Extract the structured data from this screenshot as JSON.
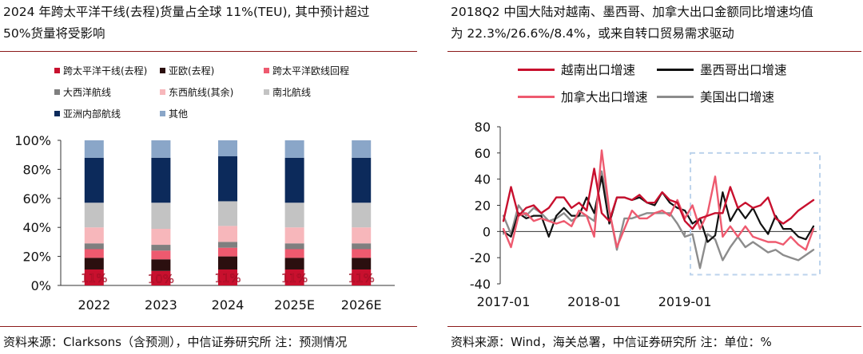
{
  "left": {
    "title_line1": "2024 年跨太平洋干线(去程)货量占全球 11%(TEU), 其中预计超过",
    "title_line2": "50%货量将受影响",
    "source": "资料来源：Clarksons（含预测），中信证券研究所   注：预测情况",
    "chart_data": {
      "type": "bar",
      "stacked": true,
      "categories": [
        "2022",
        "2023",
        "2024",
        "2025E",
        "2026E"
      ],
      "ylim": [
        0,
        100
      ],
      "yticks": [
        "0%",
        "20%",
        "40%",
        "60%",
        "80%",
        "100%"
      ],
      "grid": false,
      "legend_position": "top",
      "series": [
        {
          "name": "跨太平洋干线(去程)",
          "color": "#c8102e",
          "values": [
            11,
            10,
            11,
            11,
            11
          ],
          "labels": [
            "11%",
            "10%",
            "11%",
            "11%",
            "11%"
          ]
        },
        {
          "name": "亚欧(去程)",
          "color": "#2b0f0f",
          "values": [
            8,
            8,
            9,
            8,
            8
          ]
        },
        {
          "name": "跨太平洋欧线回程",
          "color": "#ee5a6f",
          "values": [
            6,
            6,
            6,
            6,
            6
          ]
        },
        {
          "name": "大西洋航线",
          "color": "#7f7f7f",
          "values": [
            4,
            4,
            4,
            4,
            4
          ]
        },
        {
          "name": "东西航线(其余)",
          "color": "#f7b7bb",
          "values": [
            11,
            11,
            11,
            11,
            11
          ]
        },
        {
          "name": "南北航线",
          "color": "#c3c3c3",
          "values": [
            17,
            18,
            17,
            17,
            17
          ]
        },
        {
          "name": "亚洲内部航线",
          "color": "#0c2a5b",
          "values": [
            31,
            31,
            31,
            31,
            31
          ]
        },
        {
          "name": "其他",
          "color": "#8aa6c8",
          "values": [
            12,
            12,
            11,
            12,
            12
          ]
        }
      ]
    }
  },
  "right": {
    "title_line1": "2018Q2 中国大陆对越南、墨西哥、加拿大出口金额同比增速均值",
    "title_line2": "为 22.3%/26.6%/8.4%，或来自转口贸易需求驱动",
    "source": "资料来源：Wind，海关总署，中信证券研究所   注：单位：%",
    "chart_data": {
      "type": "line",
      "x": [
        "2017-01",
        "2017-02",
        "2017-03",
        "2017-04",
        "2017-05",
        "2017-06",
        "2017-07",
        "2017-08",
        "2017-09",
        "2017-10",
        "2017-11",
        "2017-12",
        "2018-01",
        "2018-02",
        "2018-03",
        "2018-04",
        "2018-05",
        "2018-06",
        "2018-07",
        "2018-08",
        "2018-09",
        "2018-10",
        "2018-11",
        "2018-12",
        "2019-01",
        "2019-02",
        "2019-03",
        "2019-04",
        "2019-05",
        "2019-06",
        "2019-07",
        "2019-08",
        "2019-09",
        "2019-10",
        "2019-11",
        "2019-12",
        "2020-01",
        "2020-02",
        "2020-03",
        "2020-04",
        "2020-05",
        "2020-06"
      ],
      "xticks": [
        "2017-01",
        "2018-01",
        "2019-01"
      ],
      "ylim": [
        -40,
        80
      ],
      "yticks": [
        "-40",
        "-20",
        "0",
        "20",
        "40",
        "60",
        "80"
      ],
      "grid": false,
      "legend_position": "top",
      "highlight_box": {
        "x_from": "2019-03",
        "x_to": "2020-06",
        "y_from": -33,
        "y_to": 60
      },
      "series": [
        {
          "name": "越南出口增速",
          "color": "#c8102e",
          "width": 2.4,
          "values": [
            8,
            34,
            12,
            18,
            20,
            14,
            18,
            26,
            26,
            18,
            22,
            16,
            48,
            14,
            8,
            26,
            26,
            24,
            28,
            22,
            22,
            30,
            24,
            22,
            8,
            2,
            10,
            12,
            14,
            14,
            34,
            18,
            22,
            18,
            20,
            26,
            10,
            6,
            10,
            16,
            20,
            24
          ]
        },
        {
          "name": "墨西哥出口增速",
          "color": "#111111",
          "width": 2.2,
          "values": [
            0,
            -4,
            14,
            10,
            12,
            12,
            -4,
            12,
            18,
            12,
            12,
            26,
            14,
            42,
            6,
            26,
            26,
            24,
            26,
            22,
            20,
            30,
            22,
            18,
            16,
            6,
            10,
            -8,
            -3,
            30,
            8,
            18,
            10,
            18,
            6,
            -2,
            12,
            2,
            2,
            -4,
            -6,
            4
          ]
        },
        {
          "name": "加拿大出口增速",
          "color": "#ee5a6f",
          "width": 2.4,
          "values": [
            2,
            -12,
            12,
            14,
            8,
            10,
            8,
            6,
            8,
            4,
            16,
            12,
            -4,
            62,
            16,
            -12,
            2,
            16,
            10,
            10,
            14,
            16,
            12,
            24,
            10,
            20,
            2,
            14,
            42,
            -4,
            4,
            -4,
            4,
            -4,
            -6,
            -8,
            -8,
            -10,
            -4,
            -10,
            -14,
            2
          ]
        },
        {
          "name": "美国出口增速",
          "color": "#8c8c8c",
          "width": 2.4,
          "values": [
            12,
            -2,
            20,
            12,
            18,
            14,
            8,
            10,
            14,
            8,
            12,
            12,
            8,
            46,
            16,
            -14,
            10,
            10,
            12,
            14,
            14,
            14,
            14,
            6,
            -4,
            -2,
            -28,
            -2,
            -6,
            -22,
            -12,
            -4,
            -12,
            -8,
            -12,
            -16,
            -14,
            -18,
            -20,
            -22,
            -18,
            -14
          ]
        }
      ]
    }
  }
}
